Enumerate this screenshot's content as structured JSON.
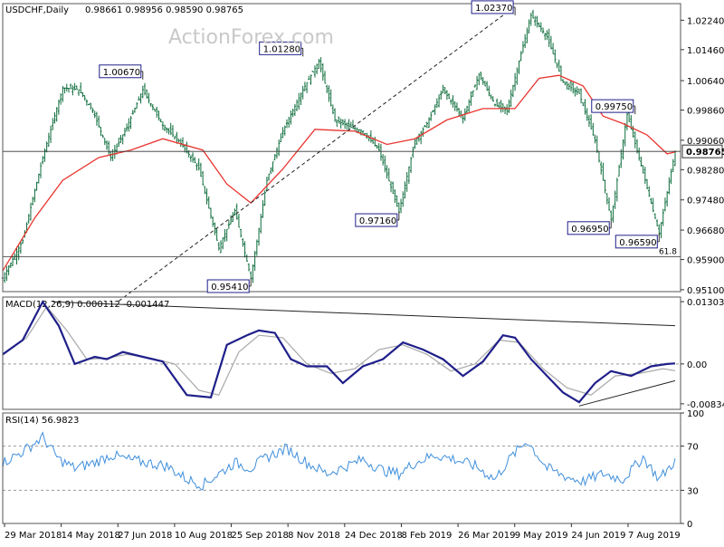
{
  "header": {
    "symbol": "USDCHF,Daily",
    "ohlc": "0.98661 0.98956 0.98590 0.98765",
    "watermark": "ActionForex.com"
  },
  "colors": {
    "background": "#ffffff",
    "candle": "#0b6b3a",
    "ema": "#e8342e",
    "macd_line": "#1f1f8a",
    "macd_signal": "#a8a8a8",
    "rsi_line": "#3f8fdc",
    "trendline": "#222222",
    "grid": "#9a9a9a",
    "label_border": "#1f1f8a"
  },
  "chart_data": [
    {
      "type": "line",
      "panel": "price",
      "title": "USDCHF,Daily",
      "subtitle": "0.98661 0.98956 0.98590 0.98765",
      "x_labels": [
        "29 Mar 2018",
        "14 May 2018",
        "27 Jun 2018",
        "10 Aug 2018",
        "25 Sep 2018",
        "8 Nov 2018",
        "24 Dec 2018",
        "8 Feb 2019",
        "26 Mar 2019",
        "9 May 2019",
        "24 Jun 2019",
        "7 Aug 2019"
      ],
      "y_ticks": [
        "1.02240",
        "1.01460",
        "1.00640",
        "0.99860",
        "0.99060",
        "0.98280",
        "0.97480",
        "0.96680",
        "0.95900",
        "0.95100"
      ],
      "ylim": [
        0.9505,
        1.0268
      ],
      "series": [
        {
          "name": "price",
          "x": [
            0,
            10,
            20,
            30,
            38,
            45,
            54,
            62,
            70,
            80,
            88,
            98,
            108,
            116,
            124,
            132,
            140,
            150,
            158,
            166,
            174,
            180,
            188,
            198,
            206,
            212,
            220,
            230,
            238,
            246,
            252,
            258,
            264,
            272,
            280,
            288,
            296,
            304,
            312,
            320,
            328,
            336
          ],
          "values": [
            0.9541,
            0.964,
            0.986,
            1.0045,
            1.004,
            0.9985,
            0.986,
            0.994,
            1.004,
            0.9945,
            0.9905,
            0.9832,
            0.962,
            0.972,
            0.9541,
            0.98,
            0.993,
            1.004,
            1.0115,
            0.996,
            0.994,
            0.993,
            0.988,
            0.9716,
            0.9905,
            0.995,
            1.004,
            0.9965,
            1.008,
            1.0,
            0.9985,
            1.0115,
            1.0237,
            1.018,
            1.006,
            1.003,
            0.9905,
            0.9695,
            0.9975,
            0.982,
            0.9659,
            0.9877
          ]
        },
        {
          "name": "ema",
          "x": [
            0,
            16,
            30,
            48,
            64,
            80,
            100,
            112,
            124,
            140,
            156,
            176,
            192,
            206,
            222,
            240,
            256,
            268,
            278,
            290,
            300,
            310,
            322,
            332,
            336
          ],
          "values": [
            0.956,
            0.97,
            0.98,
            0.986,
            0.988,
            0.991,
            0.988,
            0.979,
            0.974,
            0.983,
            0.9935,
            0.993,
            0.9895,
            0.991,
            0.996,
            0.999,
            0.999,
            1.007,
            1.0078,
            1.005,
            0.997,
            0.995,
            0.992,
            0.987,
            0.9875
          ]
        }
      ],
      "horizontal_lines": [
        {
          "label": "61.8",
          "value": 0.9597
        },
        {
          "label": "",
          "value": 0.98765
        }
      ],
      "trendline": {
        "from": {
          "x": 58,
          "y": 0.948
        },
        "to": {
          "x": 250,
          "y": 1.0237
        }
      },
      "annotations": [
        {
          "text": "1.02370",
          "x": 256,
          "value": 1.0237
        },
        {
          "text": "1.01280",
          "x": 150,
          "value": 1.0128
        },
        {
          "text": "1.00670",
          "x": 70,
          "value": 1.0067
        },
        {
          "text": "0.99750",
          "x": 316,
          "value": 0.9975
        },
        {
          "text": "0.98765",
          "x": 336,
          "value": 0.98765
        },
        {
          "text": "0.97160",
          "x": 198,
          "value": 0.9716
        },
        {
          "text": "0.96950",
          "x": 304,
          "value": 0.9695
        },
        {
          "text": "0.96590",
          "x": 328,
          "value": 0.9659
        },
        {
          "text": "0.95410",
          "x": 124,
          "value": 0.9541
        }
      ]
    },
    {
      "type": "line",
      "panel": "macd",
      "title": "MACD(12,26,9) 0.000112 -0.001447",
      "y_ticks": [
        "0.013034",
        "0.00",
        "-0.00834"
      ],
      "ylim": [
        -0.0095,
        0.014
      ],
      "series": [
        {
          "name": "macd",
          "x": [
            0,
            10,
            20,
            28,
            36,
            46,
            52,
            60,
            70,
            80,
            92,
            104,
            112,
            122,
            128,
            136,
            144,
            152,
            162,
            170,
            180,
            190,
            200,
            210,
            220,
            230,
            240,
            250,
            256,
            264,
            272,
            280,
            288,
            296,
            304,
            314,
            324,
            332,
            336
          ],
          "values": [
            0.002,
            0.005,
            0.013,
            0.008,
            0.0,
            0.0015,
            0.001,
            0.0025,
            0.0015,
            0.0005,
            -0.0065,
            -0.007,
            0.004,
            0.006,
            0.007,
            0.0065,
            0.001,
            -0.0005,
            -0.0005,
            -0.004,
            -0.0005,
            0.001,
            0.0045,
            0.003,
            0.001,
            -0.0025,
            0.0005,
            0.006,
            0.0055,
            0.001,
            -0.0025,
            -0.006,
            -0.008,
            -0.004,
            -0.0015,
            -0.0025,
            -0.0005,
            0.0,
            0.0001
          ]
        },
        {
          "name": "signal",
          "x": [
            0,
            12,
            22,
            32,
            42,
            52,
            62,
            74,
            86,
            98,
            108,
            118,
            128,
            140,
            152,
            164,
            176,
            188,
            200,
            212,
            224,
            236,
            248,
            258,
            270,
            282,
            294,
            306,
            318,
            330,
            336
          ],
          "values": [
            0.002,
            0.0055,
            0.012,
            0.007,
            0.001,
            0.0012,
            0.002,
            0.0012,
            0.0,
            -0.0055,
            -0.0065,
            0.0025,
            0.006,
            0.0055,
            0.0,
            -0.002,
            -0.001,
            0.003,
            0.004,
            0.002,
            -0.0015,
            0.0,
            0.005,
            0.0045,
            -0.001,
            -0.005,
            -0.0065,
            -0.0025,
            -0.002,
            -0.001,
            -0.0014
          ]
        }
      ],
      "zero_line": 0.0,
      "trendlines": [
        {
          "from": {
            "x": 25,
            "y": 0.013
          },
          "to": {
            "x": 336,
            "y": 0.008
          }
        },
        {
          "from": {
            "x": 288,
            "y": -0.0088
          },
          "to": {
            "x": 336,
            "y": -0.0035
          }
        }
      ]
    },
    {
      "type": "line",
      "panel": "rsi",
      "title": "RSI(14) 56.9823",
      "y_ticks": [
        "100",
        "70",
        "30",
        "0"
      ],
      "ylim": [
        0,
        100
      ],
      "series": [
        {
          "name": "rsi",
          "x": [
            0,
            10,
            20,
            28,
            36,
            46,
            54,
            62,
            72,
            82,
            92,
            100,
            108,
            116,
            124,
            132,
            142,
            152,
            162,
            172,
            180,
            190,
            198,
            206,
            216,
            226,
            236,
            246,
            254,
            262,
            272,
            282,
            290,
            300,
            310,
            320,
            328,
            336
          ],
          "values": [
            55,
            65,
            78,
            58,
            50,
            55,
            62,
            58,
            55,
            52,
            40,
            35,
            45,
            55,
            50,
            60,
            68,
            55,
            45,
            52,
            58,
            48,
            45,
            55,
            62,
            58,
            52,
            40,
            60,
            75,
            50,
            42,
            38,
            45,
            40,
            60,
            40,
            57
          ]
        }
      ],
      "levels": [
        70,
        30
      ]
    }
  ]
}
